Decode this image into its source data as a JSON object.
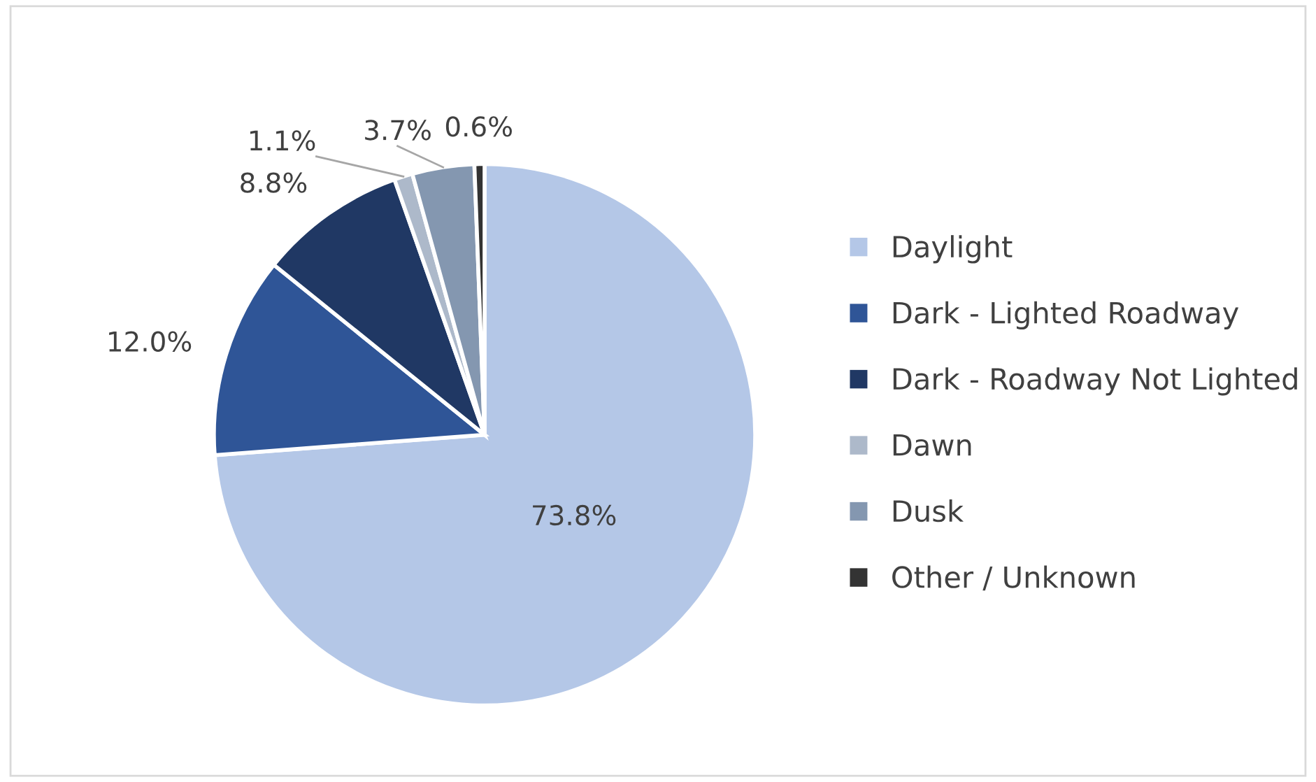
{
  "chart_data": {
    "type": "pie",
    "categories": [
      "Daylight",
      "Dark - Lighted Roadway",
      "Dark - Roadway Not Lighted",
      "Dawn",
      "Dusk",
      "Other / Unknown"
    ],
    "values": [
      73.8,
      12.0,
      8.8,
      1.1,
      3.7,
      0.6
    ],
    "colors": [
      "#b4c7e7",
      "#2f5597",
      "#203864",
      "#adb9ca",
      "#8497b0",
      "#333333"
    ],
    "value_labels": [
      "73.8%",
      "12.0%",
      "8.8%",
      "1.1%",
      "3.7%",
      "0.6%"
    ],
    "legend": "right"
  }
}
